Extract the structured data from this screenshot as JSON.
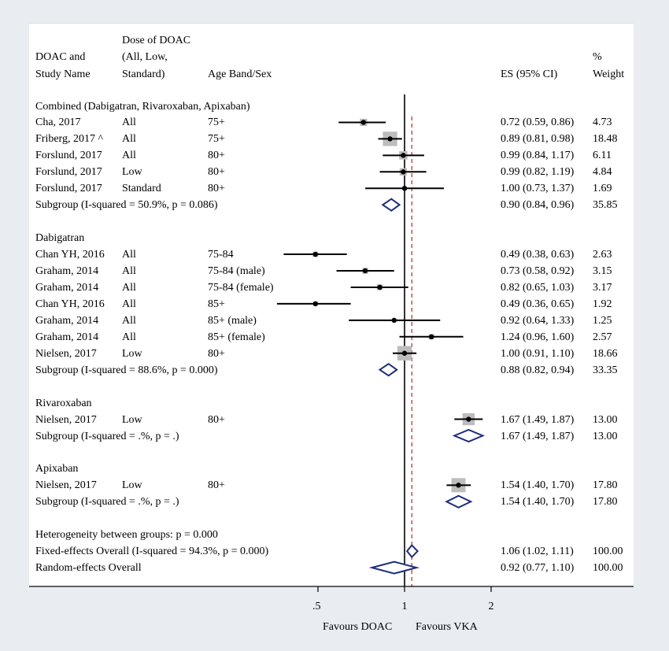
{
  "headers": {
    "col_study": "DOAC and Study Name",
    "col_study_lines": [
      "DOAC and",
      "Study Name"
    ],
    "col_dose_lines": [
      "Dose of DOAC",
      "(All, Low,",
      "Standard)"
    ],
    "col_age": "Age Band/Sex",
    "col_es": "ES (95% CI)",
    "col_weight_lines": [
      "%",
      "Weight"
    ]
  },
  "chart_data": {
    "type": "forest",
    "x_scale": "log",
    "xlim": [
      0.3,
      2.4
    ],
    "x_ticks": [
      {
        "value": 0.5,
        "label": ".5"
      },
      {
        "value": 1,
        "label": "1"
      },
      {
        "value": 2,
        "label": "2"
      }
    ],
    "null_line": 1,
    "overall_line": 1.06,
    "colors": {
      "box": "#bdbdbd",
      "diamond": "#1f2d7a",
      "dashed": "#c0392b"
    },
    "xlabel_left": "Favours DOAC",
    "xlabel_right": "Favours VKA",
    "rows": [
      {
        "kind": "group",
        "label": "Combined (Dabigatran, Rivaroxaban, Apixaban)"
      },
      {
        "kind": "study",
        "study": "Cha, 2017",
        "dose": "All",
        "age": "75+",
        "es": 0.72,
        "lo": 0.59,
        "hi": 0.86,
        "es_text": "0.72 (0.59, 0.86)",
        "weight": 4.73,
        "weight_text": "4.73"
      },
      {
        "kind": "study",
        "study": "Friberg, 2017 ^",
        "dose": "All",
        "age": "75+",
        "es": 0.89,
        "lo": 0.81,
        "hi": 0.98,
        "es_text": "0.89 (0.81, 0.98)",
        "weight": 18.48,
        "weight_text": "18.48"
      },
      {
        "kind": "study",
        "study": "Forslund, 2017",
        "dose": "All",
        "age": "80+",
        "es": 0.99,
        "lo": 0.84,
        "hi": 1.17,
        "es_text": "0.99 (0.84, 1.17)",
        "weight": 6.11,
        "weight_text": "6.11"
      },
      {
        "kind": "study",
        "study": "Forslund, 2017",
        "dose": "Low",
        "age": "80+",
        "es": 0.99,
        "lo": 0.82,
        "hi": 1.19,
        "es_text": "0.99 (0.82, 1.19)",
        "weight": 4.84,
        "weight_text": "4.84"
      },
      {
        "kind": "study",
        "study": "Forslund, 2017",
        "dose": "Standard",
        "age": "80+",
        "es": 1.0,
        "lo": 0.73,
        "hi": 1.37,
        "es_text": "1.00 (0.73, 1.37)",
        "weight": 1.69,
        "weight_text": "1.69"
      },
      {
        "kind": "subgroup",
        "label": "Subgroup (I-squared = 50.9%, p = 0.086)",
        "es": 0.9,
        "lo": 0.84,
        "hi": 0.96,
        "es_text": "0.90 (0.84, 0.96)",
        "weight_text": "35.85"
      },
      {
        "kind": "blank"
      },
      {
        "kind": "group",
        "label": "Dabigatran"
      },
      {
        "kind": "study",
        "study": "Chan YH, 2016",
        "dose": "All",
        "age": "75-84",
        "es": 0.49,
        "lo": 0.38,
        "hi": 0.63,
        "es_text": "0.49 (0.38, 0.63)",
        "weight": 2.63,
        "weight_text": "2.63"
      },
      {
        "kind": "study",
        "study": "Graham, 2014",
        "dose": "All",
        "age": "75-84 (male)",
        "es": 0.73,
        "lo": 0.58,
        "hi": 0.92,
        "es_text": "0.73 (0.58, 0.92)",
        "weight": 3.15,
        "weight_text": "3.15"
      },
      {
        "kind": "study",
        "study": "Graham, 2014",
        "dose": "All",
        "age": "75-84 (female)",
        "es": 0.82,
        "lo": 0.65,
        "hi": 1.03,
        "es_text": "0.82 (0.65, 1.03)",
        "weight": 3.17,
        "weight_text": "3.17"
      },
      {
        "kind": "study",
        "study": "Chan YH, 2016",
        "dose": "All",
        "age": "85+",
        "es": 0.49,
        "lo": 0.36,
        "hi": 0.65,
        "es_text": "0.49 (0.36, 0.65)",
        "weight": 1.92,
        "weight_text": "1.92"
      },
      {
        "kind": "study",
        "study": "Graham, 2014",
        "dose": "All",
        "age": "85+ (male)",
        "es": 0.92,
        "lo": 0.64,
        "hi": 1.33,
        "es_text": "0.92 (0.64, 1.33)",
        "weight": 1.25,
        "weight_text": "1.25"
      },
      {
        "kind": "study",
        "study": "Graham, 2014",
        "dose": "All",
        "age": "85+ (female)",
        "es": 1.24,
        "lo": 0.96,
        "hi": 1.6,
        "es_text": "1.24 (0.96, 1.60)",
        "weight": 2.57,
        "weight_text": "2.57"
      },
      {
        "kind": "study",
        "study": "Nielsen, 2017",
        "dose": "Low",
        "age": "80+",
        "es": 1.0,
        "lo": 0.91,
        "hi": 1.1,
        "es_text": "1.00 (0.91, 1.10)",
        "weight": 18.66,
        "weight_text": "18.66"
      },
      {
        "kind": "subgroup",
        "label": "Subgroup (I-squared = 88.6%, p = 0.000)",
        "es": 0.88,
        "lo": 0.82,
        "hi": 0.94,
        "es_text": "0.88 (0.82, 0.94)",
        "weight_text": "33.35"
      },
      {
        "kind": "blank"
      },
      {
        "kind": "group",
        "label": "Rivaroxaban"
      },
      {
        "kind": "study",
        "study": "Nielsen, 2017",
        "dose": "Low",
        "age": "80+",
        "es": 1.67,
        "lo": 1.49,
        "hi": 1.87,
        "es_text": "1.67 (1.49, 1.87)",
        "weight": 13.0,
        "weight_text": "13.00"
      },
      {
        "kind": "subgroup",
        "label": "Subgroup (I-squared = .%, p = .)",
        "es": 1.67,
        "lo": 1.49,
        "hi": 1.87,
        "es_text": "1.67 (1.49, 1.87)",
        "weight_text": "13.00"
      },
      {
        "kind": "blank"
      },
      {
        "kind": "group",
        "label": "Apixaban"
      },
      {
        "kind": "study",
        "study": "Nielsen, 2017",
        "dose": "Low",
        "age": "80+",
        "es": 1.54,
        "lo": 1.4,
        "hi": 1.7,
        "es_text": "1.54 (1.40, 1.70)",
        "weight": 17.8,
        "weight_text": "17.80"
      },
      {
        "kind": "subgroup",
        "label": "Subgroup (I-squared = .%, p = .)",
        "es": 1.54,
        "lo": 1.4,
        "hi": 1.7,
        "es_text": "1.54 (1.40, 1.70)",
        "weight_text": "17.80"
      },
      {
        "kind": "blank"
      },
      {
        "kind": "note",
        "label": "Heterogeneity between groups: p = 0.000"
      },
      {
        "kind": "overall",
        "label": "Fixed-effects Overall (I-squared = 94.3%, p = 0.000)",
        "es": 1.06,
        "lo": 1.02,
        "hi": 1.11,
        "es_text": "1.06 (1.02, 1.11)",
        "weight_text": "100.00"
      },
      {
        "kind": "overall",
        "label": "Random-effects Overall",
        "es": 0.92,
        "lo": 0.77,
        "hi": 1.1,
        "es_text": "0.92 (0.77, 1.10)",
        "weight_text": "100.00"
      }
    ]
  }
}
